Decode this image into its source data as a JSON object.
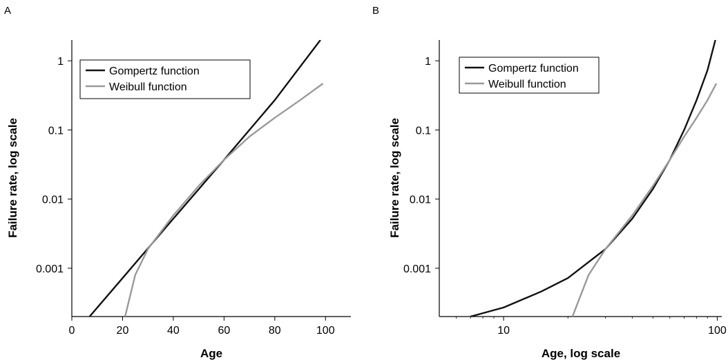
{
  "chart_data": [
    {
      "panel": "A",
      "type": "line",
      "xlabel": "Age",
      "ylabel": "Failure rate, log scale",
      "xscale": "linear",
      "yscale": "log",
      "xlim": [
        0,
        110
      ],
      "ylim": [
        0.0002,
        2
      ],
      "xticks": [
        0,
        20,
        40,
        60,
        80,
        100
      ],
      "xtick_labels": [
        "0",
        "20",
        "40",
        "60",
        "80",
        "100"
      ],
      "yticks": [
        0.001,
        0.01,
        0.1,
        1
      ],
      "ytick_labels": [
        "0.001",
        "0.01",
        "0.1",
        "1"
      ],
      "grid": false,
      "legend_position": "top-left",
      "series": [
        {
          "name": "Gompertz function",
          "color": "#111111",
          "x": [
            7,
            20,
            40,
            60,
            80,
            98
          ],
          "y": [
            0.0002,
            0.00072,
            0.0052,
            0.037,
            0.27,
            2.0
          ]
        },
        {
          "name": "Weibull function",
          "color": "#999999",
          "x": [
            21,
            25,
            30,
            40,
            50,
            60,
            70,
            80,
            90,
            99
          ],
          "y": [
            0.0002,
            0.0008,
            0.0019,
            0.0058,
            0.0155,
            0.037,
            0.08,
            0.15,
            0.27,
            0.47
          ]
        }
      ]
    },
    {
      "panel": "B",
      "type": "line",
      "xlabel": "Age, log scale",
      "ylabel": "Failure rate, log scale",
      "xscale": "log",
      "yscale": "log",
      "xlim": [
        5,
        105
      ],
      "ylim": [
        0.0002,
        2
      ],
      "xticks": [
        10,
        100
      ],
      "xtick_labels": [
        "10",
        "100"
      ],
      "yticks": [
        0.001,
        0.01,
        0.1,
        1
      ],
      "ytick_labels": [
        "0.001",
        "0.01",
        "0.1",
        "1"
      ],
      "grid": false,
      "legend_position": "top-left",
      "series": [
        {
          "name": "Gompertz function",
          "color": "#111111",
          "x": [
            7,
            10,
            15,
            20,
            30,
            40,
            50,
            60,
            70,
            80,
            90,
            98
          ],
          "y": [
            0.0002,
            0.00027,
            0.00046,
            0.00072,
            0.0019,
            0.0052,
            0.014,
            0.037,
            0.1,
            0.27,
            0.73,
            2.0
          ]
        },
        {
          "name": "Weibull function",
          "color": "#999999",
          "x": [
            21,
            25,
            30,
            40,
            50,
            60,
            70,
            80,
            90,
            99
          ],
          "y": [
            0.0002,
            0.0008,
            0.0019,
            0.0058,
            0.0155,
            0.037,
            0.08,
            0.15,
            0.27,
            0.47
          ]
        }
      ]
    }
  ]
}
